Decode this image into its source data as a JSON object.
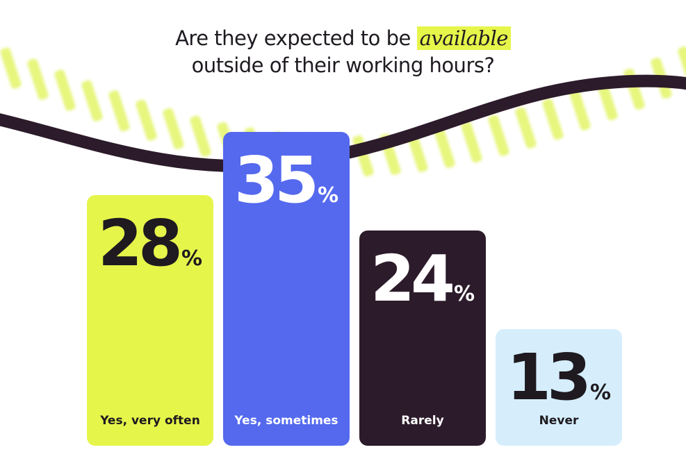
{
  "title": {
    "before": "Are they expected to be",
    "highlight": "available",
    "line2": "outside of their working hours?"
  },
  "colors": {
    "lime": "#e6f54a",
    "blue": "#5469ee",
    "dark": "#2c1b2a",
    "light_blue": "#d6eefc",
    "stripe": "#e3f466"
  },
  "chart_data": {
    "type": "bar",
    "title": "Are they expected to be available outside of their working hours?",
    "categories": [
      "Yes, very often",
      "Yes, sometimes",
      "Rarely",
      "Never"
    ],
    "values": [
      28,
      35,
      24,
      13
    ],
    "unit": "%",
    "bar_colors": [
      "#e6f54a",
      "#5469ee",
      "#2c1b2a",
      "#d6eefc"
    ],
    "text_colors": [
      "#1e1a20",
      "#ffffff",
      "#ffffff",
      "#1e1a20"
    ],
    "grid": false,
    "legend": "none"
  }
}
